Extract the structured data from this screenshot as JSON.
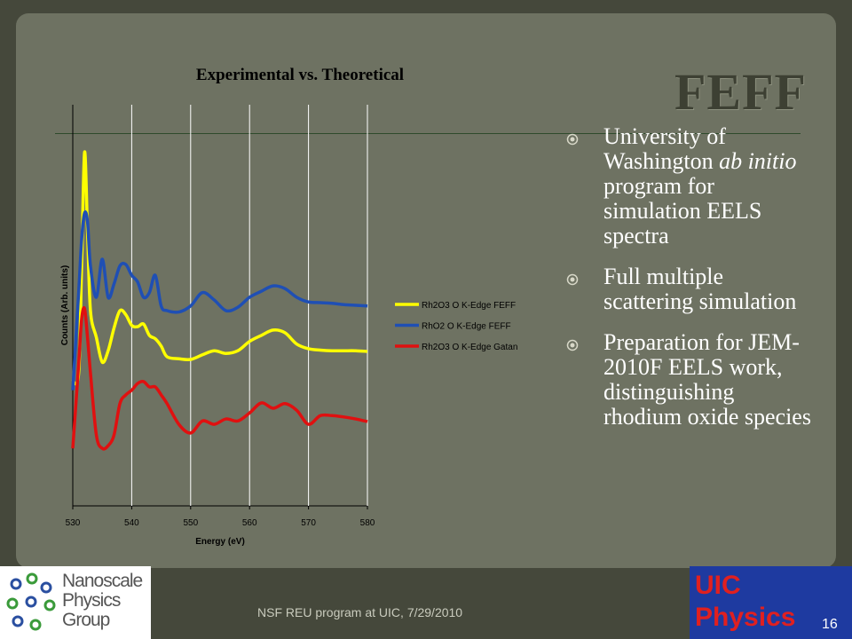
{
  "slide": {
    "title": "FEFF",
    "bullets": [
      [
        "University of Washington ",
        "ab initio",
        " program for simulation EELS spectra"
      ],
      [
        "Full multiple scattering simulation"
      ],
      [
        "Preparation for JEM-2010F EELS work, distinguishing rhodium oxide species"
      ]
    ],
    "footer": "NSF REU program at UIC, 7/29/2010",
    "page_number": "16",
    "logo_left": [
      "Nanoscale",
      "Physics",
      "Group"
    ],
    "logo_right": [
      "UIC",
      "Physics"
    ]
  },
  "chart_data": {
    "type": "line",
    "title": "Experimental vs. Theoretical",
    "x_label": "Energy (eV)",
    "y_label": "Counts (Arb. units)",
    "x": [
      530,
      531,
      531.5,
      532,
      532.5,
      533,
      534,
      535,
      536,
      537,
      538,
      539,
      540,
      541,
      542,
      543,
      544,
      545,
      546,
      548,
      550,
      552,
      554,
      556,
      558,
      560,
      562,
      564,
      566,
      568,
      570,
      572,
      574,
      576,
      578,
      580
    ],
    "series": [
      {
        "name": "Rh2O3 O  K-Edge FEFF",
        "color": "#ffff00",
        "values": [
          1.86,
          1.99,
          3.59,
          5.29,
          4.12,
          2.92,
          2.52,
          2.15,
          2.32,
          2.66,
          2.92,
          2.86,
          2.7,
          2.68,
          2.72,
          2.55,
          2.5,
          2.39,
          2.23,
          2.2,
          2.19,
          2.26,
          2.32,
          2.28,
          2.32,
          2.46,
          2.55,
          2.63,
          2.59,
          2.42,
          2.35,
          2.33,
          2.32,
          2.32,
          2.32,
          2.31
        ]
      },
      {
        "name": "RhO2 O K-Edge FEFF",
        "color": "#1f4fb4",
        "values": [
          1.73,
          3.19,
          3.98,
          4.38,
          4.25,
          3.59,
          3.12,
          3.69,
          3.12,
          3.32,
          3.59,
          3.61,
          3.45,
          3.35,
          3.12,
          3.19,
          3.45,
          2.99,
          2.92,
          2.9,
          2.99,
          3.19,
          3.08,
          2.92,
          2.97,
          3.12,
          3.21,
          3.29,
          3.25,
          3.12,
          3.05,
          3.04,
          3.03,
          3.01,
          3.0,
          2.99
        ]
      },
      {
        "name": "Rh2O3 O K-Edge Gatan",
        "color": "#e01010",
        "values": [
          0.86,
          2.12,
          2.79,
          2.95,
          2.52,
          1.99,
          1.06,
          0.86,
          0.9,
          1.06,
          1.53,
          1.66,
          1.73,
          1.83,
          1.86,
          1.78,
          1.78,
          1.66,
          1.53,
          1.22,
          1.09,
          1.27,
          1.22,
          1.3,
          1.27,
          1.39,
          1.54,
          1.46,
          1.53,
          1.43,
          1.22,
          1.35,
          1.35,
          1.33,
          1.3,
          1.26
        ]
      }
    ],
    "xlim": [
      530,
      580
    ],
    "xticks": [
      530,
      540,
      550,
      560,
      570,
      580
    ],
    "ylim": [
      0,
      6
    ],
    "grid": true,
    "legend": "right"
  }
}
